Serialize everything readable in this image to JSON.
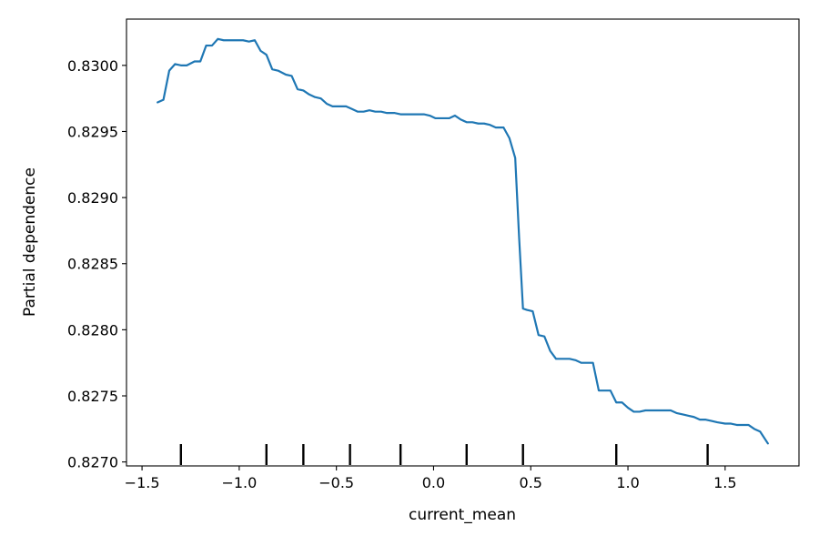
{
  "chart_data": {
    "type": "line",
    "title": "",
    "xlabel": "current_mean",
    "ylabel": "Partial dependence",
    "xlim": [
      -1.58,
      1.88
    ],
    "ylim": [
      0.82697,
      0.83035
    ],
    "x_ticks": [
      -1.5,
      -1.0,
      -0.5,
      0.0,
      0.5,
      1.0,
      1.5
    ],
    "x_tick_labels": [
      "−1.5",
      "−1.0",
      "−0.5",
      "0.0",
      "0.5",
      "1.0",
      "1.5"
    ],
    "y_ticks": [
      0.827,
      0.8275,
      0.828,
      0.8285,
      0.829,
      0.8295,
      0.83
    ],
    "y_tick_labels": [
      "0.8270",
      "0.8275",
      "0.8280",
      "0.8285",
      "0.8290",
      "0.8295",
      "0.8300"
    ],
    "grid": false,
    "deciles": [
      -1.3,
      -0.86,
      -0.67,
      -0.43,
      -0.17,
      0.17,
      0.46,
      0.94,
      1.41
    ],
    "series": [
      {
        "color": "#1f77b4",
        "x": [
          -1.42,
          -1.39,
          -1.36,
          -1.33,
          -1.3,
          -1.27,
          -1.23,
          -1.2,
          -1.17,
          -1.14,
          -1.11,
          -1.08,
          -1.05,
          -1.01,
          -0.98,
          -0.95,
          -0.92,
          -0.89,
          -0.86,
          -0.83,
          -0.8,
          -0.76,
          -0.73,
          -0.7,
          -0.67,
          -0.64,
          -0.61,
          -0.58,
          -0.55,
          -0.52,
          -0.48,
          -0.45,
          -0.42,
          -0.39,
          -0.36,
          -0.33,
          -0.3,
          -0.27,
          -0.24,
          -0.2,
          -0.17,
          -0.14,
          -0.11,
          -0.08,
          -0.05,
          -0.02,
          0.01,
          0.04,
          0.08,
          0.11,
          0.14,
          0.17,
          0.2,
          0.23,
          0.26,
          0.29,
          0.32,
          0.36,
          0.39,
          0.42,
          0.44,
          0.46,
          0.48,
          0.51,
          0.54,
          0.57,
          0.6,
          0.63,
          0.66,
          0.7,
          0.73,
          0.76,
          0.79,
          0.82,
          0.85,
          0.88,
          0.91,
          0.94,
          0.97,
          1.0,
          1.03,
          1.06,
          1.09,
          1.12,
          1.16,
          1.19,
          1.22,
          1.25,
          1.28,
          1.31,
          1.34,
          1.37,
          1.4,
          1.43,
          1.46,
          1.5,
          1.53,
          1.56,
          1.59,
          1.62,
          1.65,
          1.68,
          1.72
        ],
        "y": [
          0.82972,
          0.82974,
          0.82996,
          0.83001,
          0.83,
          0.83,
          0.83003,
          0.83003,
          0.83015,
          0.83015,
          0.8302,
          0.83019,
          0.83019,
          0.83019,
          0.83019,
          0.83018,
          0.83019,
          0.83011,
          0.83008,
          0.82997,
          0.82996,
          0.82993,
          0.82992,
          0.82982,
          0.82981,
          0.82978,
          0.82976,
          0.82975,
          0.82971,
          0.82969,
          0.82969,
          0.82969,
          0.82967,
          0.82965,
          0.82965,
          0.82966,
          0.82965,
          0.82965,
          0.82964,
          0.82964,
          0.82963,
          0.82963,
          0.82963,
          0.82963,
          0.82963,
          0.82962,
          0.8296,
          0.8296,
          0.8296,
          0.82962,
          0.82959,
          0.82957,
          0.82957,
          0.82956,
          0.82956,
          0.82955,
          0.82953,
          0.82953,
          0.82945,
          0.8293,
          0.8287,
          0.82816,
          0.82815,
          0.82814,
          0.82796,
          0.82795,
          0.82784,
          0.82778,
          0.82778,
          0.82778,
          0.82777,
          0.82775,
          0.82775,
          0.82775,
          0.82754,
          0.82754,
          0.82754,
          0.82745,
          0.82745,
          0.82741,
          0.82738,
          0.82738,
          0.82739,
          0.82739,
          0.82739,
          0.82739,
          0.82739,
          0.82737,
          0.82736,
          0.82735,
          0.82734,
          0.82732,
          0.82732,
          0.82731,
          0.8273,
          0.82729,
          0.82729,
          0.82728,
          0.82728,
          0.82728,
          0.82725,
          0.82723,
          0.82714
        ]
      }
    ]
  }
}
